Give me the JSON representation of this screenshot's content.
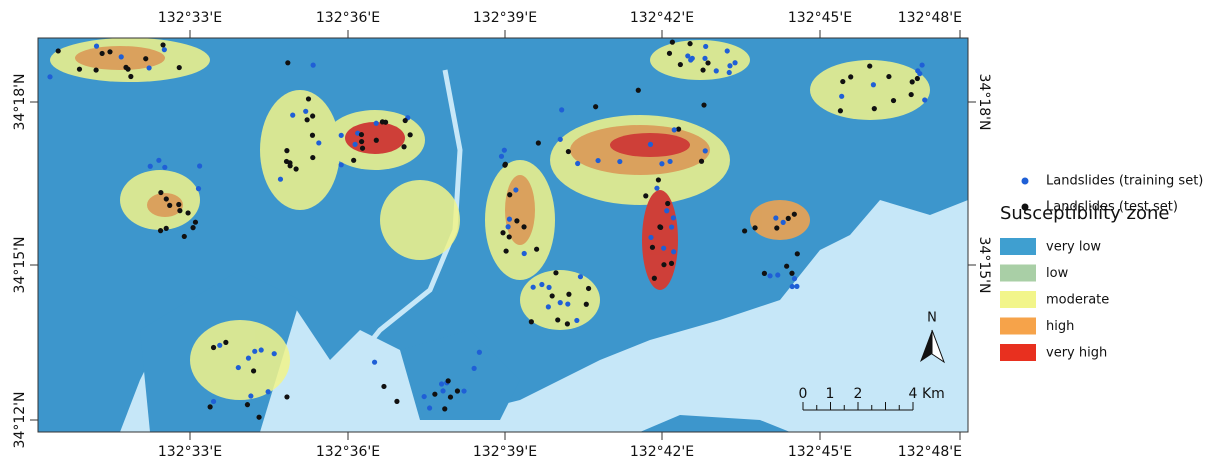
{
  "map": {
    "top_labels": [
      "132°33'E",
      "132°36'E",
      "132°39'E",
      "132°42'E",
      "132°45'E",
      "132°48'E"
    ],
    "bottom_labels": [
      "132°33'E",
      "132°36'E",
      "132°39'E",
      "132°42'E",
      "132°45'E",
      "132°48'E"
    ],
    "left_labels": [
      "34°18'N",
      "34°15'N",
      "34°12'N"
    ],
    "right_labels": [
      "34°18'N",
      "34°15'N"
    ],
    "north": "N",
    "scale": {
      "labels": [
        "0",
        "1",
        "2",
        "4"
      ],
      "unit": "Km"
    }
  },
  "legend": {
    "points": [
      {
        "label": "Landslides (training set)",
        "color": "#1f5fd6"
      },
      {
        "label": "Landslides (test set)",
        "color": "#111111"
      }
    ],
    "title": "Susceptibility zone",
    "zones": [
      {
        "label": "very low",
        "color": "#3f9fd0"
      },
      {
        "label": "low",
        "color": "#a9cfa6"
      },
      {
        "label": "moderate",
        "color": "#f2f58a"
      },
      {
        "label": "high",
        "color": "#f6a34a"
      },
      {
        "label": "very high",
        "color": "#e8301f"
      }
    ]
  }
}
